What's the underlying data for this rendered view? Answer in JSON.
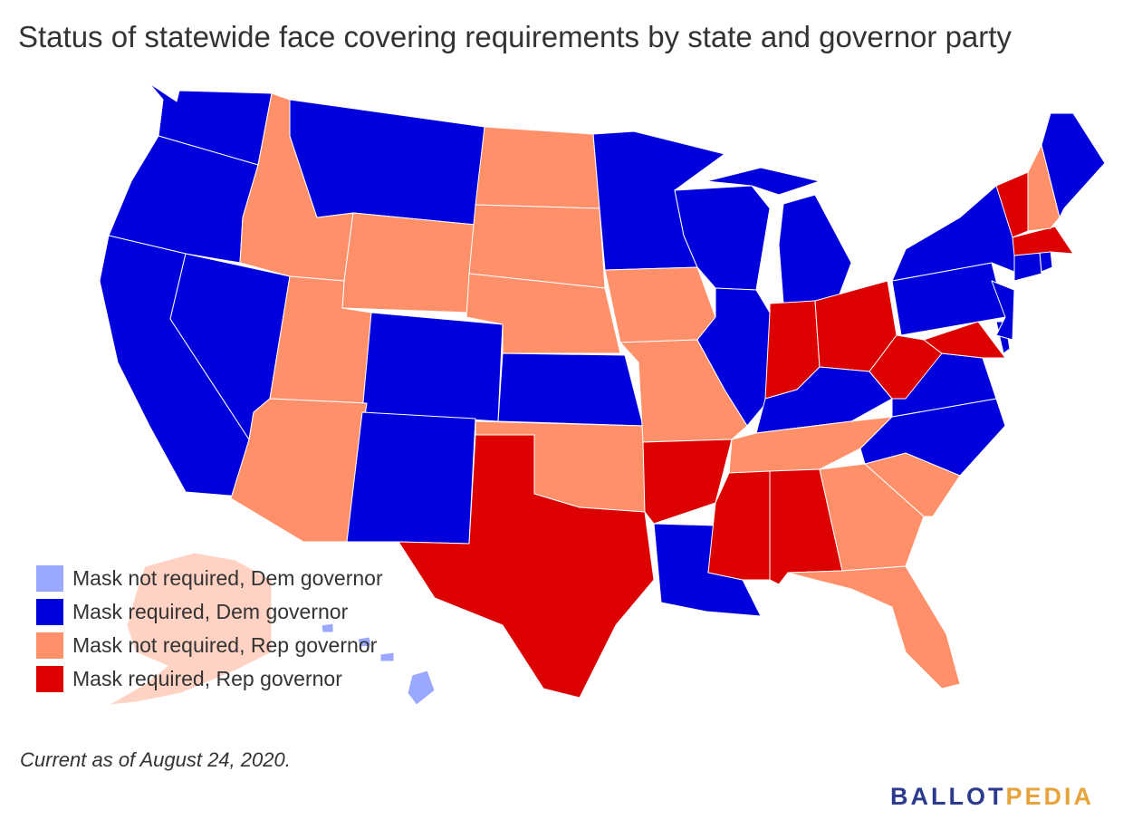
{
  "title": "Status of statewide face covering requirements by state and governor party",
  "footnote": "Current as of August 24, 2020.",
  "logo": {
    "part1": "BALLOT",
    "part2": "PEDIA",
    "color1": "#2b3a8c",
    "color2": "#e8a33a"
  },
  "categories": {
    "dem_no_mask": {
      "label": "Mask not required, Dem governor",
      "color": "#9aa9ff"
    },
    "dem_mask": {
      "label": "Mask required, Dem governor",
      "color": "#0000dd"
    },
    "rep_no_mask": {
      "label": "Mask not required, Rep governor",
      "color": "#ff906a"
    },
    "rep_mask": {
      "label": "Mask required, Rep governor",
      "color": "#dd0000"
    }
  },
  "legend": [
    {
      "label": "Mask not required, Dem governor",
      "color": "#9aa9ff"
    },
    {
      "label": "Mask required, Dem governor",
      "color": "#0000dd"
    },
    {
      "label": "Mask not required, Rep governor",
      "color": "#ff906a"
    },
    {
      "label": "Mask required, Rep governor",
      "color": "#dd0000"
    }
  ],
  "states": {
    "WA": "dem_mask",
    "OR": "dem_mask",
    "CA": "dem_mask",
    "NV": "dem_mask",
    "ID": "rep_no_mask",
    "MT": "dem_mask",
    "WY": "rep_no_mask",
    "UT": "rep_no_mask",
    "AZ": "rep_no_mask",
    "CO": "dem_mask",
    "NM": "dem_mask",
    "ND": "rep_no_mask",
    "SD": "rep_no_mask",
    "NE": "rep_no_mask",
    "KS": "dem_mask",
    "OK": "rep_no_mask",
    "TX": "rep_mask",
    "MN": "dem_mask",
    "IA": "rep_no_mask",
    "MO": "rep_no_mask",
    "AR": "rep_mask",
    "LA": "dem_mask",
    "WI": "dem_mask",
    "IL": "dem_mask",
    "MI": "dem_mask",
    "IN": "rep_mask",
    "OH": "rep_mask",
    "KY": "dem_mask",
    "TN": "rep_no_mask",
    "MS": "rep_mask",
    "AL": "rep_mask",
    "GA": "rep_no_mask",
    "FL": "rep_no_mask",
    "SC": "rep_no_mask",
    "NC": "dem_mask",
    "VA": "dem_mask",
    "WV": "rep_mask",
    "MD": "rep_mask",
    "DE": "dem_mask",
    "PA": "dem_mask",
    "NJ": "dem_mask",
    "NY": "dem_mask",
    "CT": "dem_mask",
    "RI": "dem_mask",
    "MA": "rep_mask",
    "VT": "rep_mask",
    "NH": "rep_no_mask",
    "ME": "dem_mask",
    "AK": "rep_no_mask",
    "HI": "dem_no_mask"
  }
}
